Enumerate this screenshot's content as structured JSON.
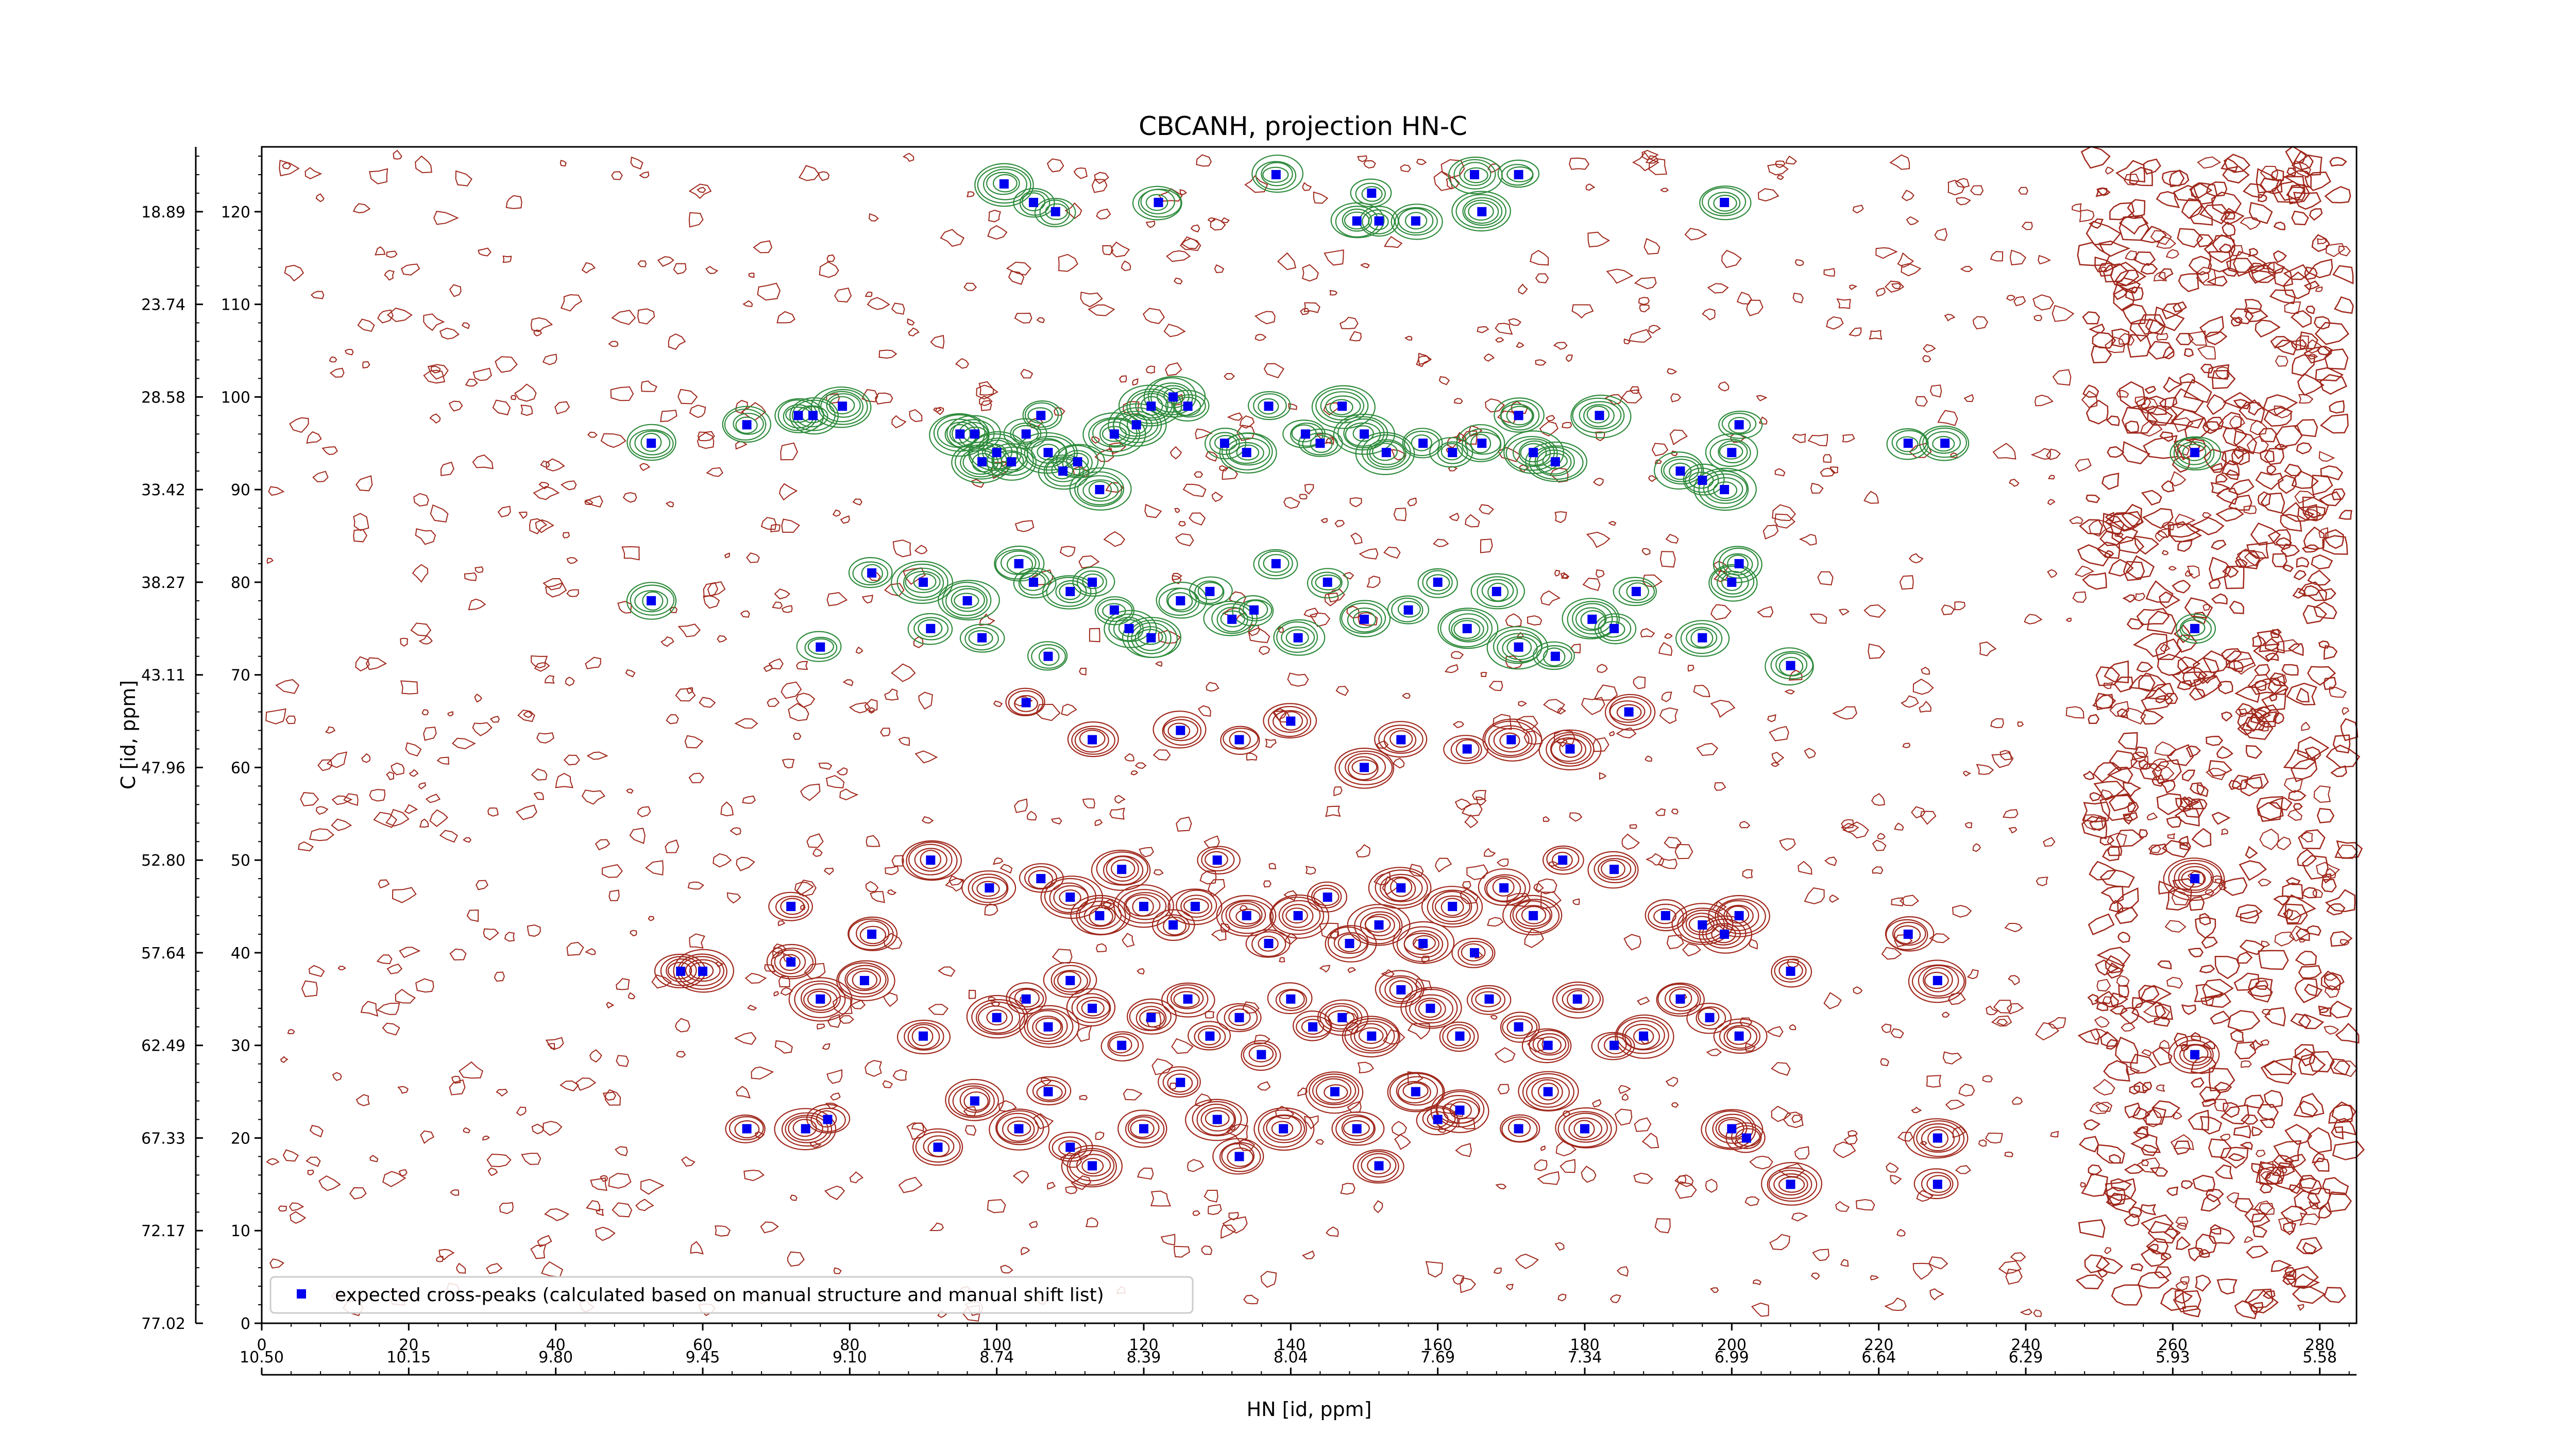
{
  "chart_data": {
    "type": "scatter",
    "title": "CBCANH, projection HN-C",
    "xlabel": "HN [id, ppm]",
    "ylabel": "C [id, ppm]",
    "xlim": [
      0,
      285
    ],
    "ylim": [
      0,
      127
    ],
    "x_ticks": [
      "0",
      "20",
      "40",
      "60",
      "80",
      "100",
      "120",
      "140",
      "160",
      "180",
      "200",
      "220",
      "240",
      "260",
      "280"
    ],
    "y_ticks": [
      "0",
      "10",
      "20",
      "30",
      "40",
      "50",
      "60",
      "70",
      "80",
      "90",
      "100",
      "110",
      "120"
    ],
    "x_ppm_ticks": [
      "10.50",
      "10.15",
      "9.80",
      "9.45",
      "9.10",
      "8.74",
      "8.39",
      "8.04",
      "7.69",
      "7.34",
      "6.99",
      "6.64",
      "6.29",
      "5.93",
      "5.58"
    ],
    "y_ppm_ticks": [
      "77.02",
      "72.17",
      "67.33",
      "62.49",
      "57.64",
      "52.80",
      "47.96",
      "43.11",
      "38.27",
      "33.42",
      "28.58",
      "23.74",
      "18.89"
    ],
    "grid": false,
    "legend_position": "lower-left",
    "colors": {
      "peaks": "#0000ee",
      "positive_contour": "#a0281c",
      "negative_contour": "#2e8b3c"
    },
    "series": [
      {
        "name": "expected cross-peaks (calculated based on manual structure and manual shift list)",
        "points": [
          [
            101,
            123
          ],
          [
            105,
            121
          ],
          [
            108,
            120
          ],
          [
            122,
            121
          ],
          [
            138,
            124
          ],
          [
            151,
            122
          ],
          [
            165,
            124
          ],
          [
            171,
            124
          ],
          [
            149,
            119
          ],
          [
            152,
            119
          ],
          [
            157,
            119
          ],
          [
            166,
            120
          ],
          [
            199,
            121
          ],
          [
            53,
            95
          ],
          [
            66,
            97
          ],
          [
            73,
            98
          ],
          [
            75,
            98
          ],
          [
            79,
            99
          ],
          [
            95,
            96
          ],
          [
            97,
            96
          ],
          [
            98,
            93
          ],
          [
            100,
            94
          ],
          [
            102,
            93
          ],
          [
            104,
            96
          ],
          [
            106,
            98
          ],
          [
            107,
            94
          ],
          [
            109,
            92
          ],
          [
            111,
            93
          ],
          [
            114,
            90
          ],
          [
            116,
            96
          ],
          [
            119,
            97
          ],
          [
            121,
            99
          ],
          [
            124,
            100
          ],
          [
            126,
            99
          ],
          [
            131,
            95
          ],
          [
            134,
            94
          ],
          [
            137,
            99
          ],
          [
            142,
            96
          ],
          [
            144,
            95
          ],
          [
            147,
            99
          ],
          [
            150,
            96
          ],
          [
            153,
            94
          ],
          [
            158,
            95
          ],
          [
            162,
            94
          ],
          [
            166,
            95
          ],
          [
            171,
            98
          ],
          [
            173,
            94
          ],
          [
            176,
            93
          ],
          [
            182,
            98
          ],
          [
            193,
            92
          ],
          [
            196,
            91
          ],
          [
            199,
            90
          ],
          [
            200,
            94
          ],
          [
            201,
            97
          ],
          [
            224,
            95
          ],
          [
            229,
            95
          ],
          [
            263,
            94
          ],
          [
            53,
            78
          ],
          [
            76,
            73
          ],
          [
            83,
            81
          ],
          [
            90,
            80
          ],
          [
            91,
            75
          ],
          [
            96,
            78
          ],
          [
            98,
            74
          ],
          [
            103,
            82
          ],
          [
            105,
            80
          ],
          [
            107,
            72
          ],
          [
            110,
            79
          ],
          [
            113,
            80
          ],
          [
            116,
            77
          ],
          [
            118,
            75
          ],
          [
            121,
            74
          ],
          [
            125,
            78
          ],
          [
            129,
            79
          ],
          [
            132,
            76
          ],
          [
            135,
            77
          ],
          [
            138,
            82
          ],
          [
            141,
            74
          ],
          [
            145,
            80
          ],
          [
            150,
            76
          ],
          [
            156,
            77
          ],
          [
            160,
            80
          ],
          [
            164,
            75
          ],
          [
            168,
            79
          ],
          [
            171,
            73
          ],
          [
            176,
            72
          ],
          [
            181,
            76
          ],
          [
            184,
            75
          ],
          [
            187,
            79
          ],
          [
            196,
            74
          ],
          [
            200,
            80
          ],
          [
            201,
            82
          ],
          [
            208,
            71
          ],
          [
            263,
            75
          ],
          [
            104,
            67
          ],
          [
            113,
            63
          ],
          [
            125,
            64
          ],
          [
            133,
            63
          ],
          [
            140,
            65
          ],
          [
            150,
            60
          ],
          [
            155,
            63
          ],
          [
            164,
            62
          ],
          [
            170,
            63
          ],
          [
            178,
            62
          ],
          [
            186,
            66
          ],
          [
            72,
            45
          ],
          [
            83,
            42
          ],
          [
            91,
            50
          ],
          [
            99,
            47
          ],
          [
            106,
            48
          ],
          [
            110,
            46
          ],
          [
            114,
            44
          ],
          [
            117,
            49
          ],
          [
            120,
            45
          ],
          [
            124,
            43
          ],
          [
            127,
            45
          ],
          [
            130,
            50
          ],
          [
            134,
            44
          ],
          [
            137,
            41
          ],
          [
            141,
            44
          ],
          [
            145,
            46
          ],
          [
            148,
            41
          ],
          [
            152,
            43
          ],
          [
            155,
            47
          ],
          [
            158,
            41
          ],
          [
            162,
            45
          ],
          [
            165,
            40
          ],
          [
            169,
            47
          ],
          [
            173,
            44
          ],
          [
            177,
            50
          ],
          [
            184,
            49
          ],
          [
            191,
            44
          ],
          [
            196,
            43
          ],
          [
            199,
            42
          ],
          [
            201,
            44
          ],
          [
            208,
            38
          ],
          [
            224,
            42
          ],
          [
            228,
            37
          ],
          [
            263,
            48
          ],
          [
            57,
            38
          ],
          [
            60,
            38
          ],
          [
            72,
            39
          ],
          [
            76,
            35
          ],
          [
            82,
            37
          ],
          [
            90,
            31
          ],
          [
            100,
            33
          ],
          [
            104,
            35
          ],
          [
            107,
            32
          ],
          [
            110,
            37
          ],
          [
            113,
            34
          ],
          [
            117,
            30
          ],
          [
            121,
            33
          ],
          [
            126,
            35
          ],
          [
            129,
            31
          ],
          [
            133,
            33
          ],
          [
            136,
            29
          ],
          [
            140,
            35
          ],
          [
            143,
            32
          ],
          [
            147,
            33
          ],
          [
            151,
            31
          ],
          [
            155,
            36
          ],
          [
            159,
            34
          ],
          [
            163,
            31
          ],
          [
            167,
            35
          ],
          [
            171,
            32
          ],
          [
            175,
            30
          ],
          [
            179,
            35
          ],
          [
            184,
            30
          ],
          [
            188,
            31
          ],
          [
            193,
            35
          ],
          [
            197,
            33
          ],
          [
            201,
            31
          ],
          [
            66,
            21
          ],
          [
            74,
            21
          ],
          [
            77,
            22
          ],
          [
            92,
            19
          ],
          [
            97,
            24
          ],
          [
            103,
            21
          ],
          [
            107,
            25
          ],
          [
            110,
            19
          ],
          [
            113,
            17
          ],
          [
            120,
            21
          ],
          [
            125,
            26
          ],
          [
            130,
            22
          ],
          [
            133,
            18
          ],
          [
            139,
            21
          ],
          [
            146,
            25
          ],
          [
            149,
            21
          ],
          [
            152,
            17
          ],
          [
            157,
            25
          ],
          [
            160,
            22
          ],
          [
            163,
            23
          ],
          [
            171,
            21
          ],
          [
            175,
            25
          ],
          [
            180,
            21
          ],
          [
            200,
            21
          ],
          [
            202,
            20
          ],
          [
            208,
            15
          ],
          [
            228,
            20
          ],
          [
            228,
            15
          ],
          [
            263,
            29
          ]
        ]
      }
    ]
  }
}
